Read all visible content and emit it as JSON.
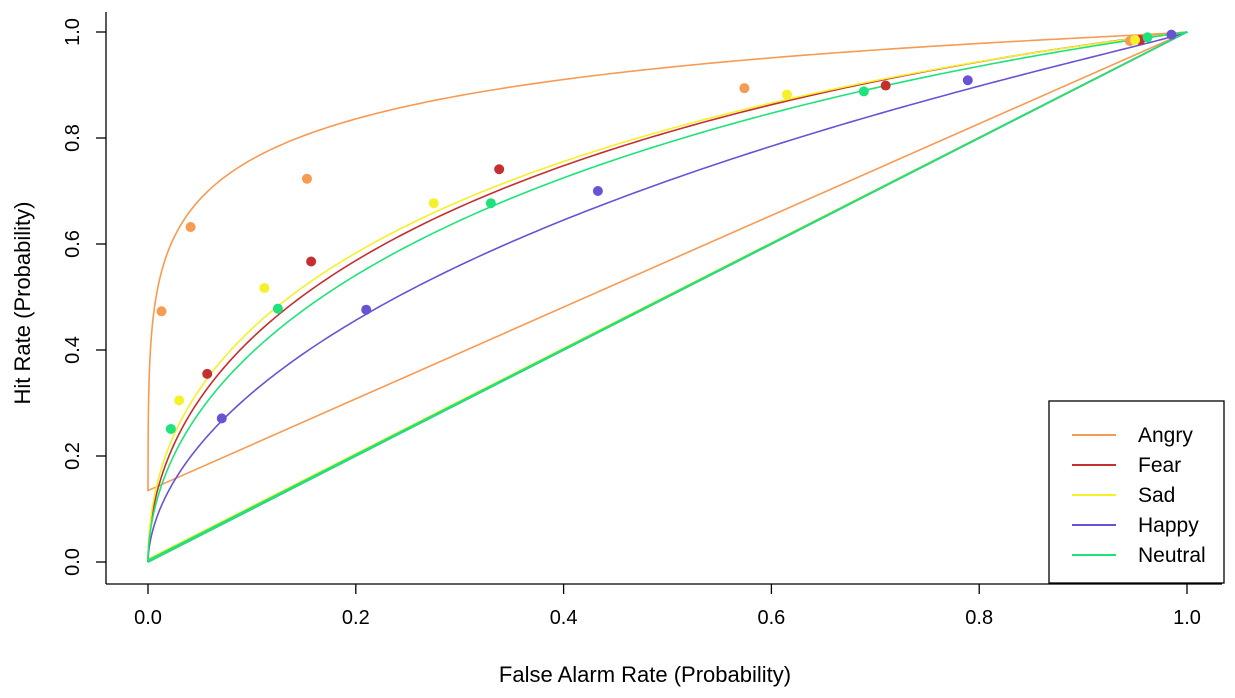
{
  "chart_data": {
    "type": "line",
    "title": "",
    "xlabel": "False Alarm Rate (Probability)",
    "ylabel": "Hit Rate (Probability)",
    "xlim": [
      0,
      1
    ],
    "ylim": [
      0,
      1
    ],
    "x_ticks": [
      "0.0",
      "0.2",
      "0.4",
      "0.6",
      "0.8",
      "1.0"
    ],
    "y_ticks": [
      "0.0",
      "0.2",
      "0.4",
      "0.6",
      "0.8",
      "1.0"
    ],
    "legend_position": "bottom-right",
    "chance_line_color": "#c8c8c8",
    "series": [
      {
        "name": "Angry",
        "color": "#f79a52",
        "dprime": 1.5,
        "slope": 0.62,
        "points": [
          [
            0.013,
            0.473
          ],
          [
            0.041,
            0.632
          ],
          [
            0.153,
            0.723
          ],
          [
            0.574,
            0.894
          ],
          [
            0.945,
            0.983
          ]
        ]
      },
      {
        "name": "Fear",
        "color": "#c3302f",
        "dprime": 0.88,
        "slope": 0.84,
        "points": [
          [
            0.057,
            0.355
          ],
          [
            0.157,
            0.567
          ],
          [
            0.338,
            0.741
          ],
          [
            0.71,
            0.899
          ],
          [
            0.955,
            0.985
          ]
        ]
      },
      {
        "name": "Sad",
        "color": "#f5f02a",
        "dprime": 0.9,
        "slope": 0.82,
        "points": [
          [
            0.03,
            0.305
          ],
          [
            0.112,
            0.517
          ],
          [
            0.275,
            0.677
          ],
          [
            0.615,
            0.882
          ],
          [
            0.95,
            0.985
          ]
        ]
      },
      {
        "name": "Happy",
        "color": "#6a52d4",
        "dprime": 0.58,
        "slope": 0.82,
        "points": [
          [
            0.071,
            0.271
          ],
          [
            0.21,
            0.476
          ],
          [
            0.433,
            0.7
          ],
          [
            0.789,
            0.909
          ],
          [
            0.985,
            0.995
          ]
        ]
      },
      {
        "name": "Neutral",
        "color": "#1fe27c",
        "dprime": 0.81,
        "slope": 0.84,
        "points": [
          [
            0.022,
            0.251
          ],
          [
            0.125,
            0.478
          ],
          [
            0.33,
            0.677
          ],
          [
            0.689,
            0.888
          ],
          [
            0.962,
            0.99
          ]
        ]
      }
    ]
  }
}
